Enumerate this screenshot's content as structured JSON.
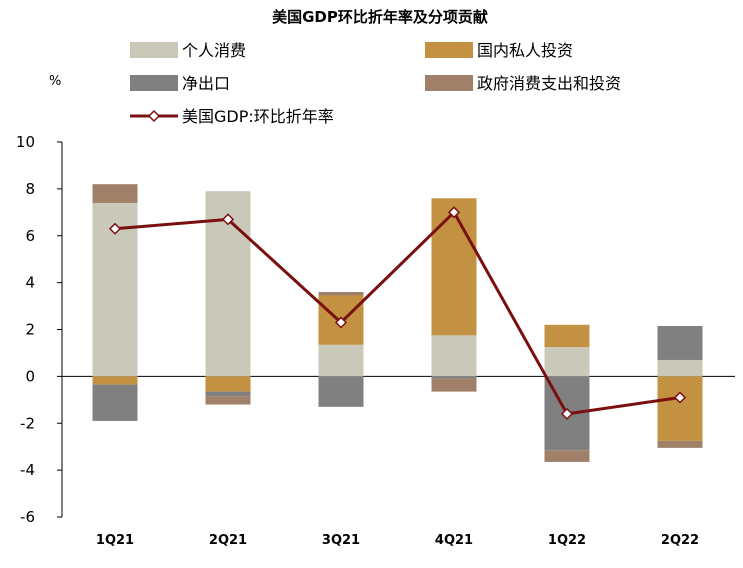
{
  "chart_data": {
    "type": "bar",
    "title": "美国GDP环比折年率及分项贡献",
    "ylabel": "%",
    "ylim": [
      -6,
      10
    ],
    "yticks": [
      "10",
      "8",
      "6",
      "4",
      "2",
      "0",
      "-2",
      "-4",
      "-6"
    ],
    "categories": [
      "1Q21",
      "2Q21",
      "3Q21",
      "4Q21",
      "1Q22",
      "2Q22"
    ],
    "stacked": true,
    "legend_placement": "top",
    "series": [
      {
        "name": "个人消费",
        "kind": "bar",
        "color": "#cac8b9",
        "values": [
          7.4,
          7.9,
          1.35,
          1.75,
          1.25,
          0.7
        ]
      },
      {
        "name": "国内私人投资",
        "kind": "bar",
        "color": "#c39142",
        "values": [
          -0.35,
          -0.65,
          2.1,
          5.85,
          0.95,
          -2.75
        ]
      },
      {
        "name": "净出口",
        "kind": "bar",
        "color": "#808080",
        "values": [
          -1.55,
          -0.2,
          -1.3,
          -0.1,
          -3.15,
          1.45
        ]
      },
      {
        "name": "政府消费支出和投资",
        "kind": "bar",
        "color": "#a08068",
        "values": [
          0.8,
          -0.35,
          0.15,
          -0.55,
          -0.5,
          -0.3
        ]
      },
      {
        "name": "美国GDP:环比折年率",
        "kind": "line",
        "color": "#7a0f0f",
        "values": [
          6.3,
          6.7,
          2.3,
          7.0,
          -1.6,
          -0.9
        ]
      }
    ]
  }
}
